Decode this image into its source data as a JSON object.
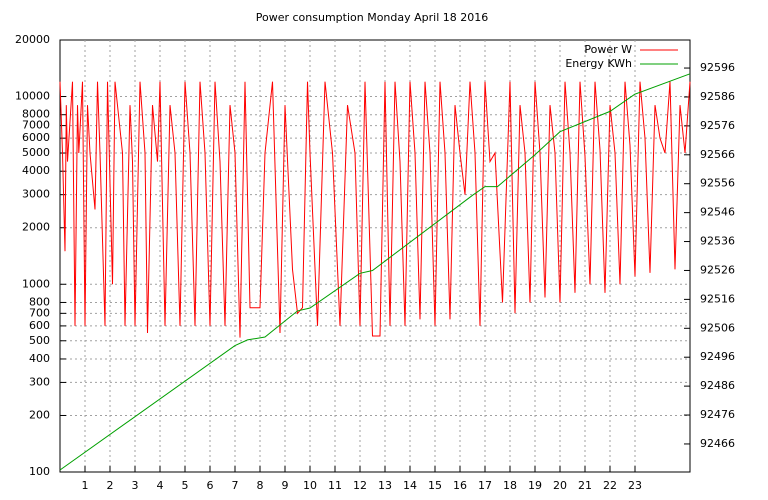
{
  "chart_data": {
    "type": "line",
    "title": "Power consumption Monday April 18 2016",
    "xlim": [
      0,
      25.2
    ],
    "xticks": [
      1,
      2,
      3,
      4,
      5,
      6,
      7,
      8,
      9,
      10,
      11,
      12,
      13,
      14,
      15,
      16,
      17,
      18,
      19,
      20,
      21,
      22,
      23
    ],
    "ylim": [
      100,
      20000
    ],
    "yscale": "log",
    "yticks": [
      100,
      200,
      300,
      400,
      500,
      600,
      700,
      800,
      1000,
      2000,
      3000,
      4000,
      5000,
      6000,
      7000,
      8000,
      10000,
      20000
    ],
    "y2lim": [
      92456.3,
      92605.7
    ],
    "y2ticks": [
      92466,
      92476,
      92486,
      92496,
      92506,
      92516,
      92526,
      92536,
      92546,
      92556,
      92566,
      92576,
      92586,
      92596
    ],
    "grid": true,
    "legend": "top-right",
    "series": [
      {
        "name": "Power W",
        "color": "#ff0000",
        "x": [
          0,
          0.1,
          0.2,
          0.25,
          0.3,
          0.5,
          0.6,
          0.7,
          0.75,
          0.9,
          1.0,
          1.1,
          1.2,
          1.4,
          1.5,
          1.6,
          1.8,
          1.9,
          2.1,
          2.2,
          2.5,
          2.6,
          2.8,
          2.9,
          3.0,
          3.2,
          3.4,
          3.5,
          3.7,
          3.9,
          4.0,
          4.2,
          4.4,
          4.6,
          4.8,
          5.0,
          5.2,
          5.4,
          5.6,
          5.8,
          6.0,
          6.2,
          6.4,
          6.6,
          6.8,
          7.0,
          7.2,
          7.4,
          7.6,
          8.0,
          8.2,
          8.5,
          8.8,
          9.0,
          9.3,
          9.5,
          9.7,
          9.9,
          10.0,
          10.3,
          10.6,
          10.9,
          11.2,
          11.5,
          11.8,
          12.0,
          12.2,
          12.5,
          12.8,
          13.0,
          13.2,
          13.4,
          13.6,
          13.8,
          14.0,
          14.2,
          14.4,
          14.6,
          14.8,
          15.0,
          15.2,
          15.4,
          15.6,
          15.8,
          16.0,
          16.2,
          16.4,
          16.6,
          16.8,
          17.0,
          17.2,
          17.4,
          17.7,
          18.0,
          18.2,
          18.4,
          18.6,
          18.8,
          19.0,
          19.2,
          19.4,
          19.6,
          19.8,
          20.0,
          20.2,
          20.4,
          20.6,
          20.8,
          21.0,
          21.2,
          21.4,
          21.6,
          21.8,
          22.0,
          22.2,
          22.4,
          22.6,
          22.8,
          23.0,
          23.2,
          23.4,
          23.6,
          23.8,
          24.0,
          24.2,
          24.4,
          24.6,
          24.8,
          25.0,
          25.2
        ],
        "values": [
          12000,
          5000,
          1500,
          9000,
          4500,
          12000,
          600,
          9000,
          5000,
          12000,
          600,
          9000,
          5000,
          2500,
          12000,
          5000,
          600,
          12000,
          1000,
          12000,
          5000,
          600,
          9000,
          4500,
          600,
          12000,
          5000,
          550,
          9000,
          4500,
          12000,
          600,
          9000,
          5000,
          600,
          12000,
          5000,
          600,
          12000,
          5000,
          600,
          12000,
          4500,
          600,
          9000,
          5000,
          520,
          12000,
          750,
          750,
          5000,
          12000,
          550,
          9000,
          1200,
          700,
          750,
          12000,
          5000,
          600,
          12000,
          5000,
          600,
          9000,
          5000,
          600,
          12000,
          530,
          530,
          12000,
          600,
          12000,
          4500,
          600,
          12000,
          5000,
          650,
          12000,
          5000,
          600,
          12000,
          5000,
          650,
          9000,
          5000,
          3000,
          12000,
          5000,
          600,
          12000,
          4500,
          5000,
          800,
          12000,
          700,
          9000,
          5000,
          800,
          12000,
          5000,
          850,
          9000,
          5000,
          800,
          12000,
          5000,
          900,
          12000,
          4800,
          1000,
          12000,
          5200,
          900,
          9000,
          5000,
          1000,
          12000,
          5500,
          1100,
          12000,
          6000,
          1150,
          9000,
          6000,
          5000,
          12000,
          1200,
          9000,
          5000,
          12000
        ]
      },
      {
        "name": "Energy KWh",
        "color": "#00a000",
        "axis": "y2",
        "x": [
          0,
          7,
          7.5,
          8.2,
          9.5,
          10,
          12,
          12.5,
          16.5,
          17,
          17.5,
          19,
          20,
          22,
          23,
          25.2
        ],
        "values": [
          92457,
          92500,
          92502,
          92503,
          92512,
          92513,
          92525,
          92526,
          92552,
          92555,
          92555,
          92566,
          92574,
          92581,
          92587,
          92594
        ]
      }
    ]
  }
}
